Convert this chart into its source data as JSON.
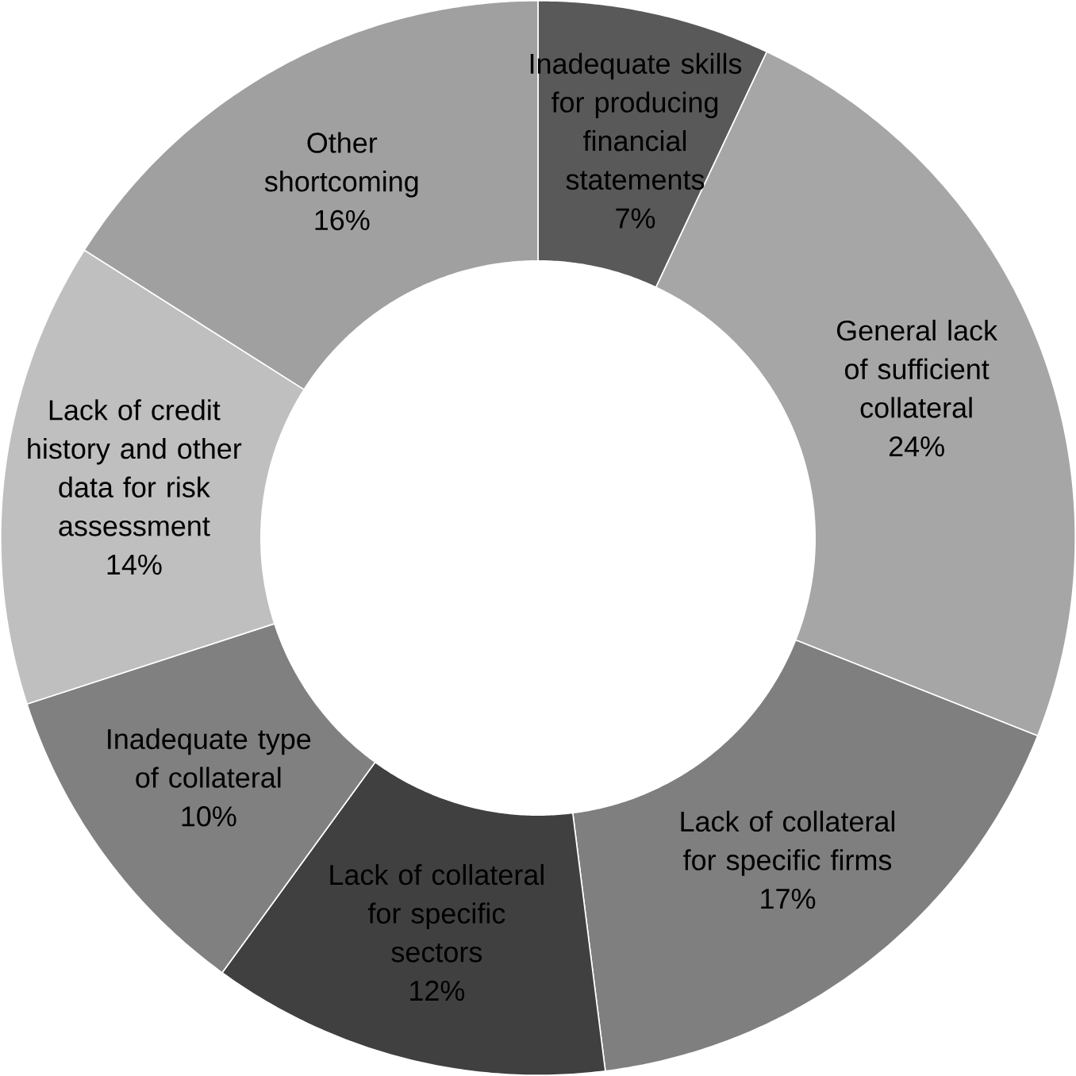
{
  "chart_data": {
    "type": "donut",
    "categories": [
      "Inadequate skills for producing financial statements",
      "General lack of sufficient collateral",
      "Lack of collateral for specific firms",
      "Lack of collateral for specific sectors",
      "Inadequate type of collateral",
      "Lack of credit history and other data for risk assessment",
      "Other shortcoming"
    ],
    "values": [
      7,
      24,
      17,
      12,
      10,
      14,
      16
    ],
    "value_labels": [
      "7%",
      "24%",
      "17%",
      "12%",
      "10%",
      "14%",
      "16%"
    ],
    "colors": [
      "#595959",
      "#a6a6a6",
      "#7f7f7f",
      "#404040",
      "#808080",
      "#bfbfbf",
      "#a0a0a0"
    ]
  }
}
